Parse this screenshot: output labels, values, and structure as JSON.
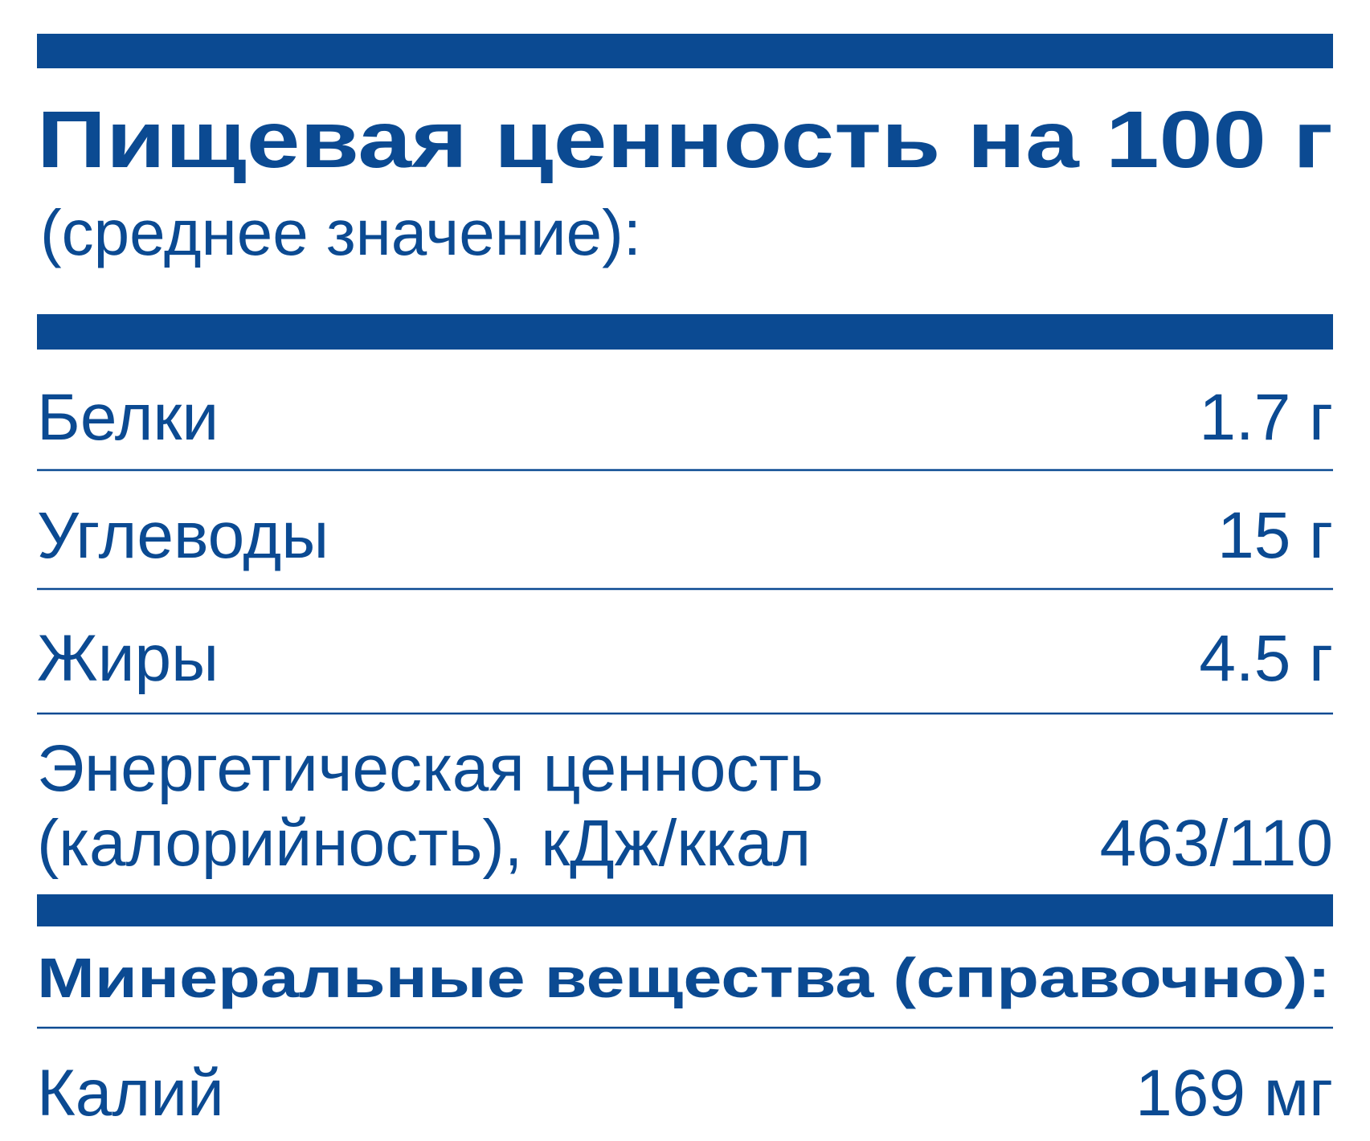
{
  "header": {
    "title": "Пищевая ценность на 100 г",
    "subtitle": "(среднее значение):"
  },
  "nutrients": [
    {
      "name": "Белки",
      "value": "1.7 г"
    },
    {
      "name": "Углеводы",
      "value": "15 г"
    },
    {
      "name": "Жиры",
      "value": "4.5 г"
    }
  ],
  "energy": {
    "name_lines": [
      "Энергетическая ценность",
      "(калорийность), кДж/ккал"
    ],
    "value": "463/110"
  },
  "minerals": {
    "title": "Минеральные вещества (справочно):",
    "rows": [
      {
        "name": "Калий",
        "value": "169 мг"
      }
    ]
  }
}
